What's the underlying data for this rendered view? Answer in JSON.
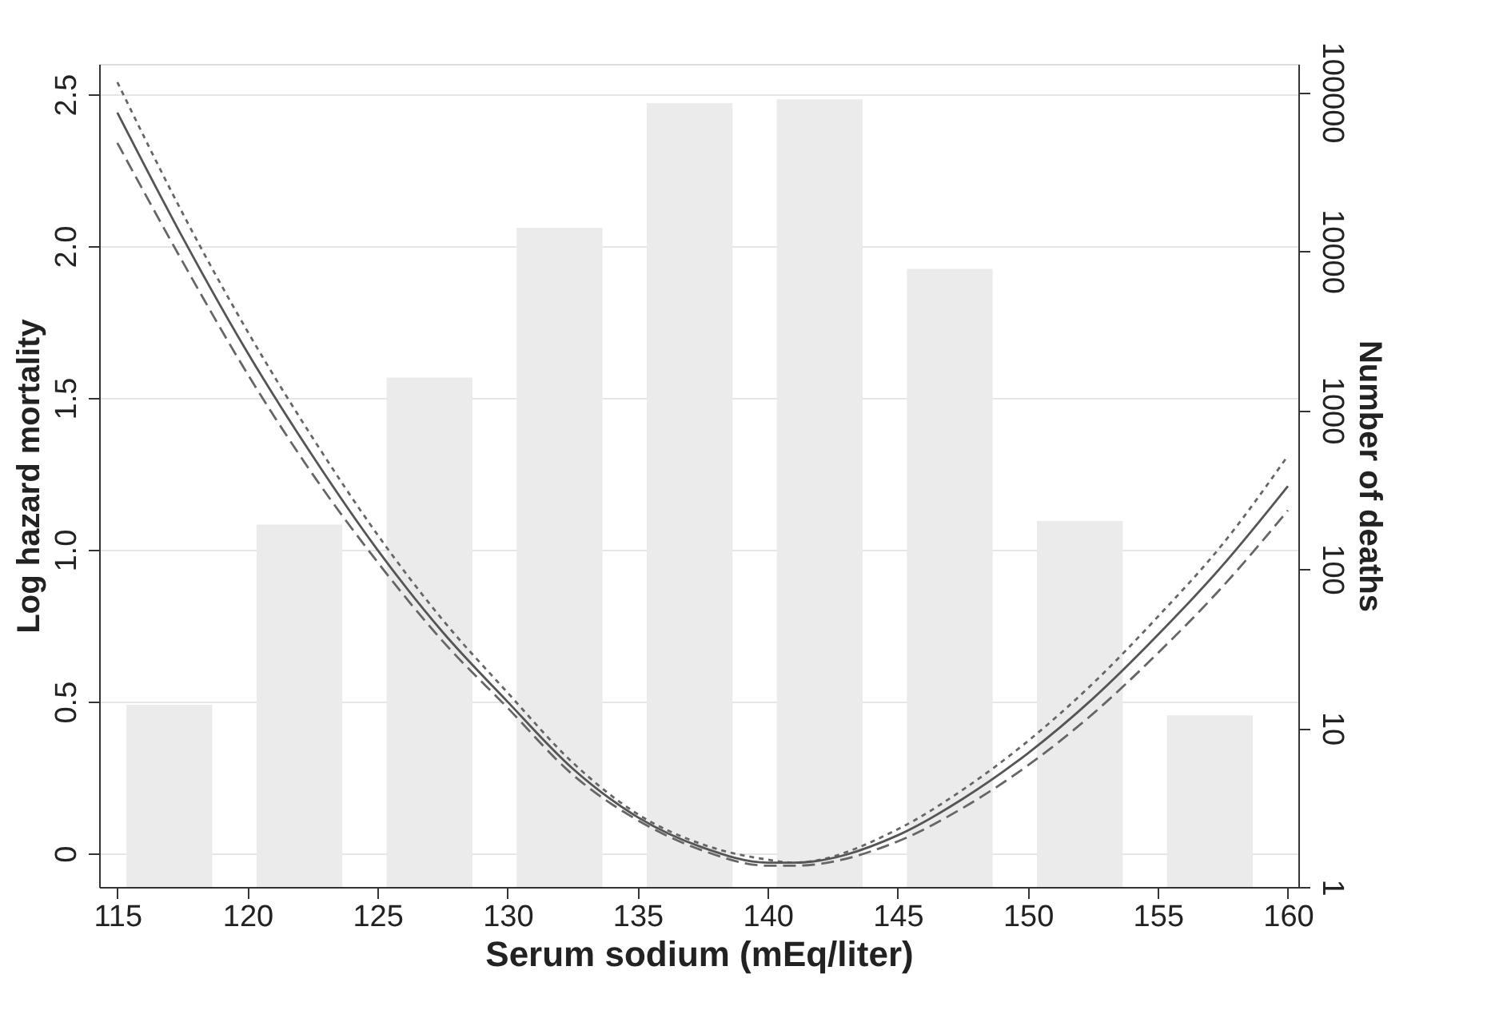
{
  "chart_data": {
    "type": "line",
    "xlabel": "Serum sodium (mEq/liter)",
    "ylabel": "Log hazard mortality",
    "y2label": "Number of deaths",
    "xlim": [
      114.3,
      160.4
    ],
    "xticks": [
      115,
      120,
      125,
      130,
      135,
      140,
      145,
      150,
      155,
      160
    ],
    "ylim": [
      -0.11,
      2.6
    ],
    "yticks": [
      0,
      0.5,
      {
        "value": 1,
        "label": "1.0"
      },
      1.5,
      {
        "value": 2,
        "label": "2.0"
      },
      2.5
    ],
    "y2lim": [
      1,
      150000
    ],
    "y2ticks": [
      1,
      10,
      100,
      1000,
      10000,
      100000
    ],
    "log": "y2",
    "grid": "y",
    "series": [
      {
        "type": "bar",
        "axis": "y2",
        "color": "#ebebeb",
        "x": [
          117,
          122,
          127,
          132,
          137,
          142,
          147,
          152,
          157
        ],
        "values": [
          14,
          190,
          1600,
          14000,
          85000,
          90000,
          7700,
          200,
          12
        ]
      },
      {
        "line_style": "dotted",
        "color": "#666666",
        "x": [
          115,
          117.5,
          120,
          122.5,
          125,
          127.5,
          130,
          132.5,
          135,
          137.5,
          140,
          141,
          145,
          147.5,
          150,
          152.5,
          155,
          157.5,
          160
        ],
        "values": [
          2.54,
          2.11,
          1.72,
          1.37,
          1.05,
          0.77,
          0.53,
          0.3,
          0.13,
          0.03,
          -0.02,
          -0.03,
          0.08,
          0.21,
          0.37,
          0.56,
          0.78,
          1.02,
          1.31
        ]
      },
      {
        "line_style": "solid",
        "color": "#555555",
        "x": [
          115,
          117.5,
          120,
          122.5,
          125,
          127.5,
          130,
          132.5,
          135,
          137.5,
          140,
          141,
          145,
          147.5,
          150,
          152.5,
          155,
          157.5,
          160
        ],
        "values": [
          2.44,
          2.03,
          1.65,
          1.31,
          1.0,
          0.73,
          0.5,
          0.28,
          0.12,
          0.02,
          -0.03,
          -0.03,
          0.06,
          0.18,
          0.33,
          0.51,
          0.72,
          0.95,
          1.21
        ]
      },
      {
        "line_style": "dashed",
        "color": "#666666",
        "x": [
          115,
          117.5,
          120,
          122.5,
          125,
          127.5,
          130,
          132.5,
          135,
          137.5,
          140,
          141,
          145,
          147.5,
          150,
          152.5,
          155,
          157.5,
          160
        ],
        "values": [
          2.34,
          1.95,
          1.58,
          1.25,
          0.96,
          0.7,
          0.48,
          0.26,
          0.11,
          0.01,
          -0.04,
          -0.04,
          0.04,
          0.15,
          0.29,
          0.46,
          0.66,
          0.88,
          1.13
        ]
      }
    ]
  }
}
